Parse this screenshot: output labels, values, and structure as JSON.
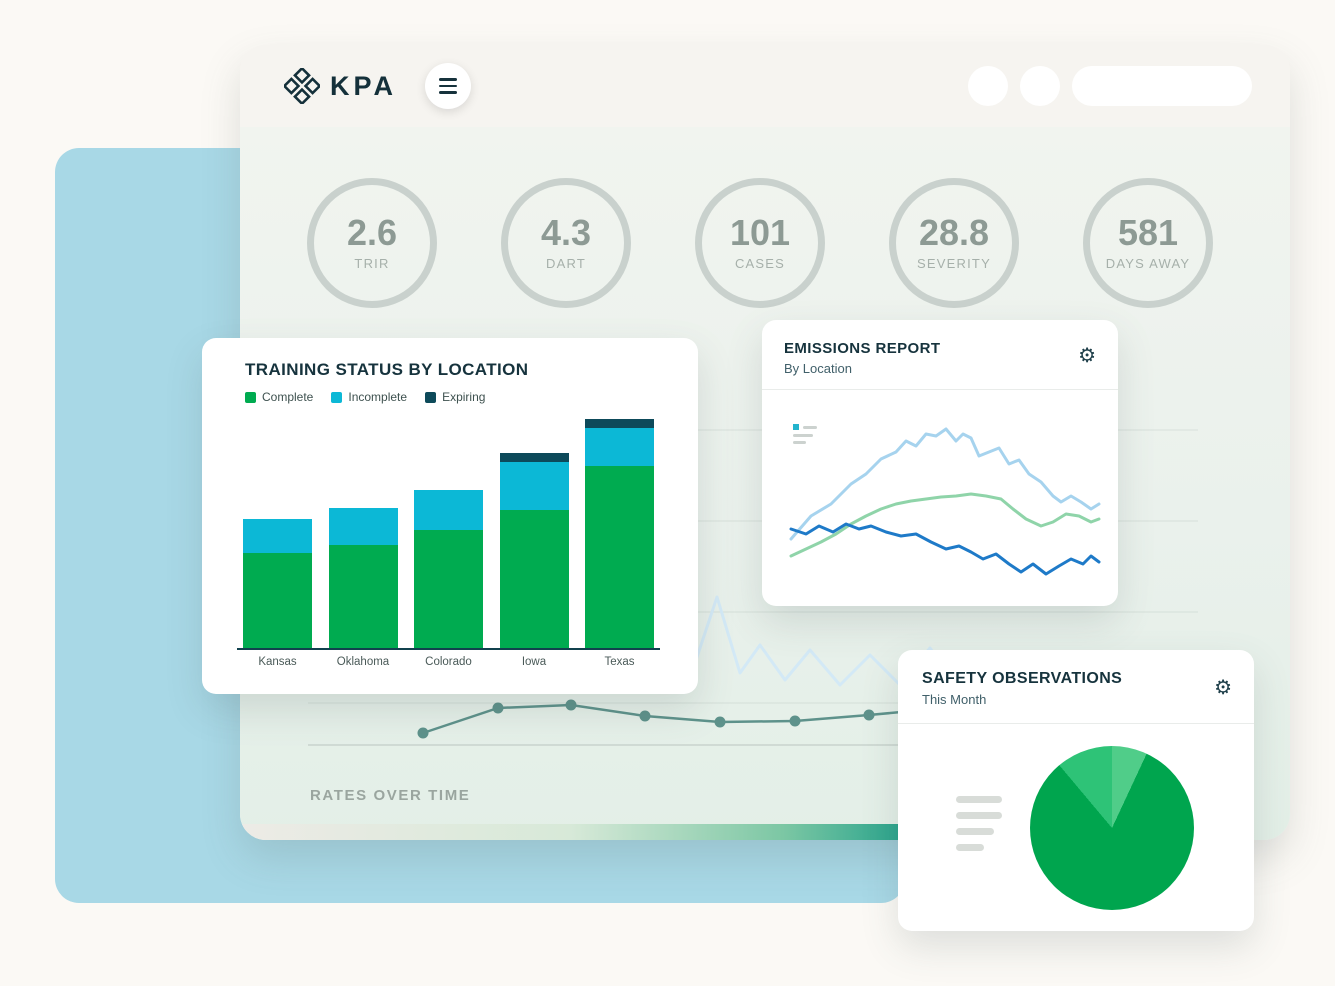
{
  "icons": {
    "settings": "⚙"
  },
  "header": {
    "brand": "KPA"
  },
  "kpis": [
    {
      "value": "2.6",
      "label": "TRIR"
    },
    {
      "value": "4.3",
      "label": "DART"
    },
    {
      "value": "101",
      "label": "CASES"
    },
    {
      "value": "28.8",
      "label": "SEVERITY"
    },
    {
      "value": "581",
      "label": "DAYS AWAY"
    }
  ],
  "rates_chart": {
    "title": "RATES OVER TIME",
    "chart_data": {
      "type": "line",
      "line_color": "#5e928b",
      "points": [
        [
          183,
          688
        ],
        [
          258,
          663
        ],
        [
          331,
          660
        ],
        [
          405,
          671
        ],
        [
          480,
          677
        ],
        [
          555,
          676
        ],
        [
          629,
          670
        ],
        [
          705,
          663
        ]
      ]
    },
    "background_line": {
      "color": "#d3e9f6",
      "points": [
        [
          430,
          640
        ],
        [
          455,
          618
        ],
        [
          477,
          552
        ],
        [
          500,
          628
        ],
        [
          520,
          600
        ],
        [
          545,
          635
        ],
        [
          570,
          605
        ],
        [
          600,
          640
        ],
        [
          630,
          610
        ],
        [
          660,
          640
        ],
        [
          690,
          603
        ],
        [
          720,
          645
        ],
        [
          750,
          610
        ],
        [
          780,
          650
        ],
        [
          810,
          618
        ],
        [
          840,
          648
        ]
      ]
    }
  },
  "training": {
    "title": "TRAINING STATUS BY LOCATION",
    "chart_data": {
      "type": "bar",
      "stacked": true,
      "unit": "relative",
      "categories": [
        "Kansas",
        "Oklahoma",
        "Colorado",
        "Iowa",
        "Texas"
      ],
      "series": [
        {
          "name": "Complete",
          "color": "#00ab50",
          "values": [
            95,
            103,
            118,
            138,
            182
          ]
        },
        {
          "name": "Incomplete",
          "color": "#0cb8d6",
          "values": [
            34,
            37,
            40,
            48,
            38
          ]
        },
        {
          "name": "Expiring",
          "color": "#0d4a5a",
          "values": [
            0,
            0,
            0,
            9,
            9
          ]
        }
      ]
    }
  },
  "emissions": {
    "title": "EMISSIONS REPORT",
    "subtitle": "By Location",
    "chart_data": {
      "type": "line",
      "series": [
        {
          "name": "line-1",
          "color": "#a6d3ee",
          "points": [
            [
              12,
              119
            ],
            [
              32,
              96
            ],
            [
              52,
              84
            ],
            [
              72,
              64
            ],
            [
              87,
              54
            ],
            [
              102,
              39
            ],
            [
              117,
              32
            ],
            [
              127,
              21
            ],
            [
              137,
              26
            ],
            [
              147,
              14
            ],
            [
              157,
              16
            ],
            [
              167,
              9
            ],
            [
              177,
              21
            ],
            [
              184,
              14
            ],
            [
              192,
              18
            ],
            [
              200,
              36
            ],
            [
              210,
              32
            ],
            [
              220,
              28
            ],
            [
              230,
              44
            ],
            [
              240,
              40
            ],
            [
              250,
              54
            ],
            [
              262,
              62
            ],
            [
              274,
              76
            ],
            [
              282,
              82
            ],
            [
              292,
              76
            ],
            [
              302,
              82
            ],
            [
              312,
              89
            ],
            [
              320,
              84
            ]
          ]
        },
        {
          "name": "line-2",
          "color": "#8fd4a9",
          "points": [
            [
              12,
              136
            ],
            [
              27,
              129
            ],
            [
              42,
              122
            ],
            [
              57,
              114
            ],
            [
              72,
              104
            ],
            [
              87,
              96
            ],
            [
              102,
              89
            ],
            [
              117,
              84
            ],
            [
              132,
              81
            ],
            [
              147,
              79
            ],
            [
              162,
              77
            ],
            [
              177,
              76
            ],
            [
              192,
              74
            ],
            [
              207,
              76
            ],
            [
              222,
              79
            ],
            [
              234,
              89
            ],
            [
              247,
              99
            ],
            [
              262,
              106
            ],
            [
              274,
              102
            ],
            [
              287,
              94
            ],
            [
              300,
              96
            ],
            [
              312,
              102
            ],
            [
              320,
              99
            ]
          ]
        },
        {
          "name": "line-3",
          "color": "#1e7ac8",
          "points": [
            [
              12,
              109
            ],
            [
              27,
              114
            ],
            [
              40,
              106
            ],
            [
              54,
              112
            ],
            [
              67,
              104
            ],
            [
              80,
              109
            ],
            [
              92,
              106
            ],
            [
              107,
              112
            ],
            [
              122,
              116
            ],
            [
              137,
              114
            ],
            [
              152,
              122
            ],
            [
              167,
              129
            ],
            [
              180,
              126
            ],
            [
              192,
              132
            ],
            [
              204,
              139
            ],
            [
              217,
              134
            ],
            [
              230,
              144
            ],
            [
              242,
              152
            ],
            [
              254,
              144
            ],
            [
              267,
              154
            ],
            [
              280,
              146
            ],
            [
              292,
              139
            ],
            [
              304,
              144
            ],
            [
              312,
              136
            ],
            [
              320,
              142
            ]
          ]
        }
      ]
    }
  },
  "safety": {
    "title": "SAFETY OBSERVATIONS",
    "subtitle": "This Month",
    "chart_data": {
      "type": "pie",
      "start_deg": -40,
      "slices": [
        {
          "color": "#2ec377",
          "deg": 40,
          "value_pct": 11
        },
        {
          "color": "#50cd89",
          "deg": 25,
          "value_pct": 7
        },
        {
          "color": "#00a54e",
          "deg": 295,
          "value_pct": 82
        }
      ]
    }
  }
}
